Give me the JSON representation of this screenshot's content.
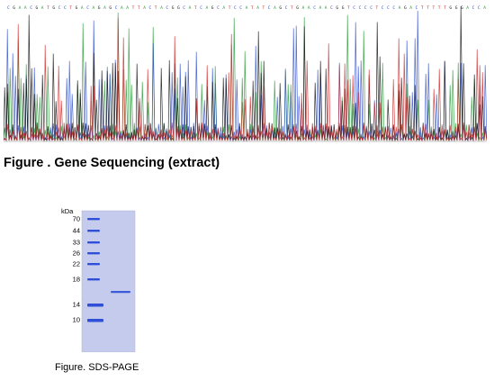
{
  "sequencing_figure": {
    "title": "Figure . Gene Sequencing (extract)",
    "trace_colors": {
      "A": "#2a9a3a",
      "C": "#2f4fc9",
      "G": "#111111",
      "T": "#cc2a2a"
    }
  },
  "gel_figure": {
    "caption": "Figure. SDS-PAGE",
    "unit_label": "kDa",
    "markers": [
      "70",
      "44",
      "33",
      "26",
      "22",
      "18",
      "14",
      "10"
    ],
    "band_color": "#2e4fd6",
    "gel_color": "#bcc5e9"
  }
}
